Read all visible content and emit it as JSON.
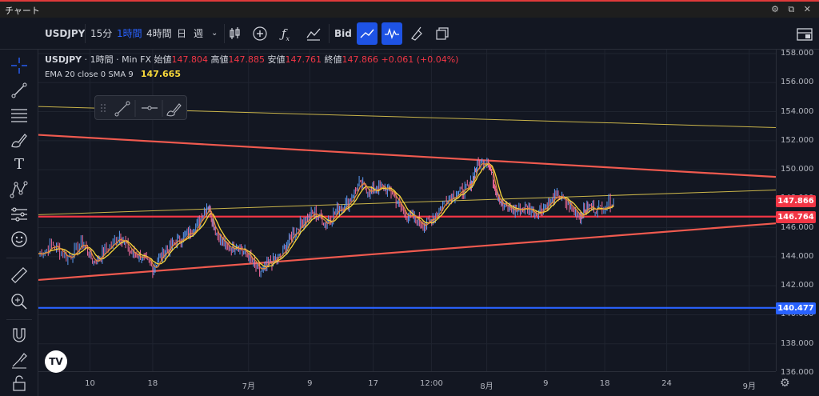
{
  "window": {
    "title": "チャート",
    "icons": "⚙ ⧉ ✕"
  },
  "toolbar": {
    "symbol": "USDJPY",
    "intervals": [
      {
        "label": "15分",
        "active": false
      },
      {
        "label": "1時間",
        "active": true
      },
      {
        "label": "4時間",
        "active": false
      },
      {
        "label": "日",
        "active": false
      },
      {
        "label": "週",
        "active": false
      }
    ],
    "more": "⌄",
    "price_source": "Bid"
  },
  "legend": {
    "symbol": "USDJPY",
    "interval": "1時間",
    "source": "Min FX",
    "open_label": "始値",
    "open": "147.804",
    "high_label": "高値",
    "high": "147.885",
    "low_label": "安値",
    "low": "147.761",
    "close_label": "終値",
    "close": "147.866",
    "change": "+0.061 (+0.04%)",
    "indicator": "EMA 20 close 0 SMA 9",
    "indicator_value": "147.665"
  },
  "colors": {
    "background": "#131722",
    "accent": "#2962ff",
    "down": "#f23645",
    "trendline": "#f05a4f",
    "support": "#f23645",
    "blue_line": "#2962ff",
    "yellow_line": "#c9b44a",
    "ema": "#f7d83a"
  },
  "chart_data": {
    "type": "line",
    "ylim": [
      136.0,
      158.5
    ],
    "y_ticks": [
      "158.000",
      "156.000",
      "154.000",
      "152.000",
      "150.000",
      "148.000",
      "146.000",
      "144.000",
      "142.000",
      "140.000",
      "138.000",
      "136.000"
    ],
    "x_ticks": [
      "10",
      "18",
      "7月",
      "9",
      "17",
      "12:00",
      "8月",
      "9",
      "18",
      "24",
      "9月"
    ],
    "x_tick_pos": [
      0.07,
      0.155,
      0.285,
      0.368,
      0.454,
      0.533,
      0.608,
      0.688,
      0.768,
      0.852,
      0.964
    ],
    "price_labels": [
      {
        "value": "147.866",
        "color": "#f23645"
      },
      {
        "value": "146.764",
        "color": "#f23645"
      },
      {
        "value": "140.477",
        "color": "#2962ff"
      }
    ],
    "lines": [
      {
        "name": "descending-resistance",
        "from": [
          0.0,
          152.4
        ],
        "to": [
          1.0,
          149.5
        ],
        "color": "#f05a4f"
      },
      {
        "name": "ascending-support",
        "from": [
          0.0,
          142.4
        ],
        "to": [
          1.0,
          146.3
        ],
        "color": "#f05a4f"
      },
      {
        "name": "horizontal-support",
        "from": [
          0.0,
          146.764
        ],
        "to": [
          1.0,
          146.764
        ],
        "color": "#f23645"
      },
      {
        "name": "horizontal-140",
        "from": [
          0.0,
          140.477
        ],
        "to": [
          1.0,
          140.477
        ],
        "color": "#2962ff"
      },
      {
        "name": "yellow-upper",
        "from": [
          -0.1,
          154.5
        ],
        "to": [
          1.0,
          152.9
        ],
        "color": "#c9b44a"
      },
      {
        "name": "yellow-lower",
        "from": [
          0.0,
          146.9
        ],
        "to": [
          1.0,
          148.6
        ],
        "color": "#c9b44a"
      }
    ],
    "price_path": [
      [
        0.0,
        144.2
      ],
      [
        0.02,
        144.8
      ],
      [
        0.04,
        143.9
      ],
      [
        0.06,
        145.0
      ],
      [
        0.075,
        143.6
      ],
      [
        0.09,
        144.4
      ],
      [
        0.11,
        145.5
      ],
      [
        0.125,
        144.3
      ],
      [
        0.14,
        144.0
      ],
      [
        0.155,
        143.2
      ],
      [
        0.17,
        144.3
      ],
      [
        0.185,
        145.0
      ],
      [
        0.2,
        145.4
      ],
      [
        0.215,
        146.2
      ],
      [
        0.23,
        147.6
      ],
      [
        0.24,
        145.8
      ],
      [
        0.255,
        144.6
      ],
      [
        0.27,
        144.8
      ],
      [
        0.285,
        144.0
      ],
      [
        0.3,
        142.9
      ],
      [
        0.315,
        143.6
      ],
      [
        0.33,
        144.1
      ],
      [
        0.345,
        145.6
      ],
      [
        0.36,
        146.5
      ],
      [
        0.375,
        147.0
      ],
      [
        0.39,
        146.3
      ],
      [
        0.405,
        147.2
      ],
      [
        0.42,
        147.7
      ],
      [
        0.435,
        149.0
      ],
      [
        0.45,
        148.5
      ],
      [
        0.465,
        148.8
      ],
      [
        0.48,
        148.4
      ],
      [
        0.495,
        147.0
      ],
      [
        0.51,
        146.6
      ],
      [
        0.525,
        146.2
      ],
      [
        0.54,
        147.0
      ],
      [
        0.555,
        148.1
      ],
      [
        0.57,
        148.4
      ],
      [
        0.585,
        148.8
      ],
      [
        0.595,
        150.3
      ],
      [
        0.61,
        150.7
      ],
      [
        0.62,
        148.6
      ],
      [
        0.63,
        147.5
      ],
      [
        0.645,
        147.2
      ],
      [
        0.66,
        147.4
      ],
      [
        0.675,
        147.0
      ],
      [
        0.69,
        147.6
      ],
      [
        0.705,
        148.2
      ],
      [
        0.72,
        147.5
      ],
      [
        0.735,
        146.8
      ],
      [
        0.745,
        147.4
      ],
      [
        0.76,
        147.3
      ],
      [
        0.78,
        147.87
      ]
    ]
  }
}
